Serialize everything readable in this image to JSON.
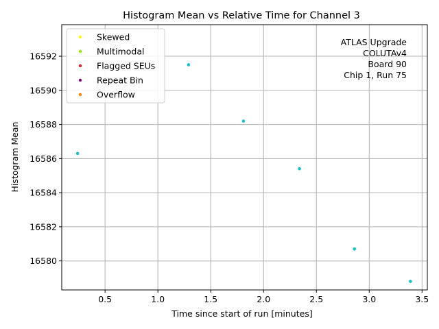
{
  "chart_data": {
    "type": "scatter",
    "title": "Histogram Mean vs Relative Time for Channel 3",
    "xlabel": "Time since start of run [minutes]",
    "ylabel": "Histogram Mean",
    "xlim": [
      0.09,
      3.55
    ],
    "ylim": [
      16578.3,
      16593.85
    ],
    "xticks": [
      0.5,
      1.0,
      1.5,
      2.0,
      2.5,
      3.0,
      3.5
    ],
    "xtick_labels": [
      "0.5",
      "1.0",
      "1.5",
      "2.0",
      "2.5",
      "3.0",
      "3.5"
    ],
    "yticks": [
      16580,
      16582,
      16584,
      16586,
      16588,
      16590,
      16592
    ],
    "ytick_labels": [
      "16580",
      "16582",
      "16584",
      "16586",
      "16588",
      "16590",
      "16592"
    ],
    "grid": true,
    "legend_position": "top-left",
    "series": [
      {
        "name": "Skewed",
        "color": "#ffff00",
        "x": [],
        "y": []
      },
      {
        "name": "Multimodal",
        "color": "#99e600",
        "x": [],
        "y": []
      },
      {
        "name": "Flagged SEUs",
        "color": "#d62728",
        "x": [],
        "y": []
      },
      {
        "name": "Repeat Bin",
        "color": "#7a0a7a",
        "x": [],
        "y": []
      },
      {
        "name": "Overflow",
        "color": "#ff7f0e",
        "x": [],
        "y": []
      }
    ],
    "points": {
      "color": "#17becf",
      "x": [
        0.24,
        1.29,
        1.81,
        2.34,
        2.86,
        3.39
      ],
      "y": [
        16586.3,
        16591.5,
        16588.2,
        16585.4,
        16580.7,
        16578.8
      ]
    },
    "annotation_lines": [
      "ATLAS Upgrade",
      "COLUTAv4",
      "Board 90",
      "Chip 1, Run 75"
    ]
  }
}
